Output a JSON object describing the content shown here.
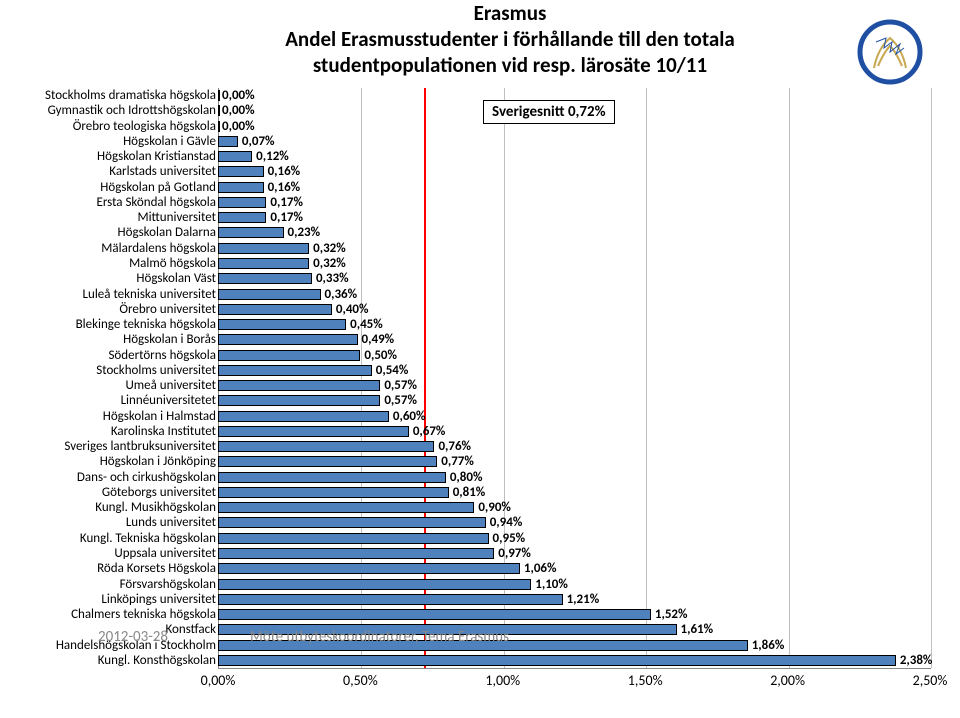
{
  "title": {
    "line1": "Erasmus",
    "line2": "Andel Erasmusstudenter i förhållande till den totala studentpopulationen vid resp. lärosäte 10/11",
    "fontsize": 21,
    "color": "#000000"
  },
  "logo": {
    "ring_color": "#1f4fa3",
    "laurel_color": "#c8a951"
  },
  "chart": {
    "type": "bar-horizontal",
    "x_min": 0.0,
    "x_max": 2.5,
    "x_tick_step": 0.5,
    "x_tick_labels": [
      "0,00%",
      "0,50%",
      "1,00%",
      "1,50%",
      "2,00%",
      "2,50%"
    ],
    "grid_color": "#c0c0c0",
    "bar_fill": "#4f81bc",
    "bar_border": "#000000",
    "avg_line_value": 0.72,
    "avg_line_color": "#ff0000",
    "avg_callout_text": "Sverigesnitt 0,72%",
    "label_fontsize": 13,
    "value_fontsize": 13,
    "tick_fontsize": 14,
    "rows": [
      {
        "label": "Stockholms dramatiska högskola",
        "value": 0.0,
        "text": "0,00%"
      },
      {
        "label": "Gymnastik och Idrottshögskolan",
        "value": 0.0,
        "text": "0,00%"
      },
      {
        "label": "Örebro teologiska högskola",
        "value": 0.0,
        "text": "0,00%"
      },
      {
        "label": "Högskolan i Gävle",
        "value": 0.07,
        "text": "0,07%"
      },
      {
        "label": "Högskolan Kristianstad",
        "value": 0.12,
        "text": "0,12%"
      },
      {
        "label": "Karlstads universitet",
        "value": 0.16,
        "text": "0,16%"
      },
      {
        "label": "Högskolan på Gotland",
        "value": 0.16,
        "text": "0,16%"
      },
      {
        "label": "Ersta Sköndal högskola",
        "value": 0.17,
        "text": "0,17%"
      },
      {
        "label": "Mittuniversitet",
        "value": 0.17,
        "text": "0,17%"
      },
      {
        "label": "Högskolan Dalarna",
        "value": 0.23,
        "text": "0,23%"
      },
      {
        "label": "Mälardalens högskola",
        "value": 0.32,
        "text": "0,32%"
      },
      {
        "label": "Malmö högskola",
        "value": 0.32,
        "text": "0,32%"
      },
      {
        "label": "Högskolan Väst",
        "value": 0.33,
        "text": "0,33%"
      },
      {
        "label": "Luleå tekniska universitet",
        "value": 0.36,
        "text": "0,36%"
      },
      {
        "label": "Örebro universitet",
        "value": 0.4,
        "text": "0,40%"
      },
      {
        "label": "Blekinge tekniska högskola",
        "value": 0.45,
        "text": "0,45%"
      },
      {
        "label": "Högskolan i Borås",
        "value": 0.49,
        "text": "0,49%"
      },
      {
        "label": "Södertörns högskola",
        "value": 0.5,
        "text": "0,50%"
      },
      {
        "label": "Stockholms universitet",
        "value": 0.54,
        "text": "0,54%"
      },
      {
        "label": "Umeå universitet",
        "value": 0.57,
        "text": "0,57%"
      },
      {
        "label": "Linnéuniversitetet",
        "value": 0.57,
        "text": "0,57%"
      },
      {
        "label": "Högskolan i Halmstad",
        "value": 0.6,
        "text": "0,60%"
      },
      {
        "label": "Karolinska Institutet",
        "value": 0.67,
        "text": "0,67%"
      },
      {
        "label": "Sveriges lantbruksuniversitet",
        "value": 0.76,
        "text": "0,76%"
      },
      {
        "label": "Högskolan i Jönköping",
        "value": 0.77,
        "text": "0,77%"
      },
      {
        "label": "Dans- och cirkushögskolan",
        "value": 0.8,
        "text": "0,80%"
      },
      {
        "label": "Göteborgs universitet",
        "value": 0.81,
        "text": "0,81%"
      },
      {
        "label": "Kungl. Musikhögskolan",
        "value": 0.9,
        "text": "0,90%"
      },
      {
        "label": "Lunds universitet",
        "value": 0.94,
        "text": "0,94%"
      },
      {
        "label": "Kungl. Tekniska högskolan",
        "value": 0.95,
        "text": "0,95%"
      },
      {
        "label": "Uppsala universitet",
        "value": 0.97,
        "text": "0,97%"
      },
      {
        "label": "Röda Korsets Högskola",
        "value": 1.06,
        "text": "1,06%"
      },
      {
        "label": "Försvarshögskolan",
        "value": 1.1,
        "text": "1,10%"
      },
      {
        "label": "Linköpings universitet",
        "value": 1.21,
        "text": "1,21%"
      },
      {
        "label": "Chalmers tekniska högskola",
        "value": 1.52,
        "text": "1,52%"
      },
      {
        "label": "Konstfack",
        "value": 1.61,
        "text": "1,61%"
      },
      {
        "label": "Handelshögskolan i Stockholm",
        "value": 1.86,
        "text": "1,86%"
      },
      {
        "label": "Kungl. Konsthögskolan",
        "value": 2.38,
        "text": "2,38%"
      }
    ]
  },
  "footer": {
    "date": "2012-03-28",
    "text": "Möte utbyteskoordinatorer, Tema Erasmus",
    "color": "#888888"
  }
}
